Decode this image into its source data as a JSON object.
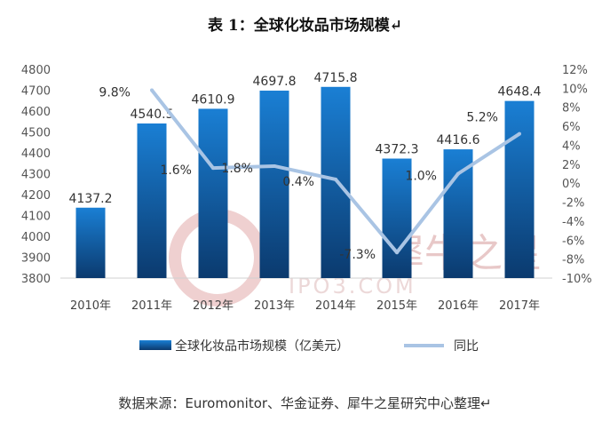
{
  "title": "表 1：全球化妆品市场规模↵",
  "source": "数据来源：Euromonitor、华金证券、犀牛之星研究中心整理↵",
  "watermark": {
    "cn": "犀牛之星",
    "en": "IPO3.COM"
  },
  "colors": {
    "bar_top": "#1a7fd4",
    "bar_bottom": "#0b3a6e",
    "line": "#a9c4e4"
  },
  "chart_data": {
    "type": "bar",
    "title": "表 1：全球化妆品市场规模",
    "categories": [
      "2010年",
      "2011年",
      "2012年",
      "2013年",
      "2014年",
      "2015年",
      "2016年",
      "2017年"
    ],
    "series": [
      {
        "name": "全球化妆品市场规模（亿美元）",
        "type": "bar",
        "axis": "left",
        "values": [
          4137.2,
          4540.5,
          4610.9,
          4697.8,
          4715.8,
          4372.3,
          4416.6,
          4648.4
        ],
        "labels": [
          "4137.2",
          "4540.5",
          "4610.9",
          "4697.8",
          "4715.8",
          "4372.3",
          "4416.6",
          "4648.4"
        ]
      },
      {
        "name": "同比",
        "type": "line",
        "axis": "right",
        "values": [
          null,
          9.8,
          1.6,
          1.8,
          0.4,
          -7.3,
          1.0,
          5.2
        ],
        "labels": [
          "",
          "9.8%",
          "1.6%",
          "1.8%",
          "0.4%",
          "-7.3%",
          "1.0%",
          "5.2%"
        ]
      }
    ],
    "ylim_left": [
      3800,
      4800
    ],
    "yticks_left": [
      "4800",
      "4700",
      "4600",
      "4500",
      "4400",
      "4300",
      "4200",
      "4100",
      "4000",
      "3900",
      "3800"
    ],
    "ylim_right": [
      -10,
      12
    ],
    "yticks_right": [
      "12%",
      "10%",
      "8%",
      "6%",
      "4%",
      "2%",
      "0%",
      "-2%",
      "-4%",
      "-6%",
      "-8%",
      "-10%"
    ],
    "grid": false,
    "legend": "bottom"
  }
}
